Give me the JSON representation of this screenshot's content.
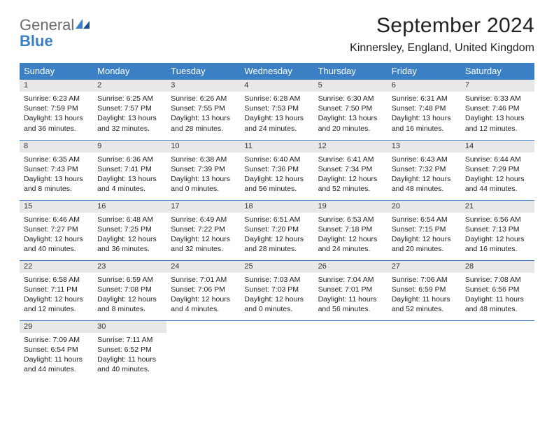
{
  "logo": {
    "general": "General",
    "blue": "Blue"
  },
  "title": "September 2024",
  "location": "Kinnersley, England, United Kingdom",
  "colors": {
    "header_bg": "#3b7fc4",
    "daynum_bg": "#e8e8e8",
    "rule": "#3b7fc4"
  },
  "day_headers": [
    "Sunday",
    "Monday",
    "Tuesday",
    "Wednesday",
    "Thursday",
    "Friday",
    "Saturday"
  ],
  "weeks": [
    [
      {
        "n": "1",
        "sr": "Sunrise: 6:23 AM",
        "ss": "Sunset: 7:59 PM",
        "d1": "Daylight: 13 hours",
        "d2": "and 36 minutes."
      },
      {
        "n": "2",
        "sr": "Sunrise: 6:25 AM",
        "ss": "Sunset: 7:57 PM",
        "d1": "Daylight: 13 hours",
        "d2": "and 32 minutes."
      },
      {
        "n": "3",
        "sr": "Sunrise: 6:26 AM",
        "ss": "Sunset: 7:55 PM",
        "d1": "Daylight: 13 hours",
        "d2": "and 28 minutes."
      },
      {
        "n": "4",
        "sr": "Sunrise: 6:28 AM",
        "ss": "Sunset: 7:53 PM",
        "d1": "Daylight: 13 hours",
        "d2": "and 24 minutes."
      },
      {
        "n": "5",
        "sr": "Sunrise: 6:30 AM",
        "ss": "Sunset: 7:50 PM",
        "d1": "Daylight: 13 hours",
        "d2": "and 20 minutes."
      },
      {
        "n": "6",
        "sr": "Sunrise: 6:31 AM",
        "ss": "Sunset: 7:48 PM",
        "d1": "Daylight: 13 hours",
        "d2": "and 16 minutes."
      },
      {
        "n": "7",
        "sr": "Sunrise: 6:33 AM",
        "ss": "Sunset: 7:46 PM",
        "d1": "Daylight: 13 hours",
        "d2": "and 12 minutes."
      }
    ],
    [
      {
        "n": "8",
        "sr": "Sunrise: 6:35 AM",
        "ss": "Sunset: 7:43 PM",
        "d1": "Daylight: 13 hours",
        "d2": "and 8 minutes."
      },
      {
        "n": "9",
        "sr": "Sunrise: 6:36 AM",
        "ss": "Sunset: 7:41 PM",
        "d1": "Daylight: 13 hours",
        "d2": "and 4 minutes."
      },
      {
        "n": "10",
        "sr": "Sunrise: 6:38 AM",
        "ss": "Sunset: 7:39 PM",
        "d1": "Daylight: 13 hours",
        "d2": "and 0 minutes."
      },
      {
        "n": "11",
        "sr": "Sunrise: 6:40 AM",
        "ss": "Sunset: 7:36 PM",
        "d1": "Daylight: 12 hours",
        "d2": "and 56 minutes."
      },
      {
        "n": "12",
        "sr": "Sunrise: 6:41 AM",
        "ss": "Sunset: 7:34 PM",
        "d1": "Daylight: 12 hours",
        "d2": "and 52 minutes."
      },
      {
        "n": "13",
        "sr": "Sunrise: 6:43 AM",
        "ss": "Sunset: 7:32 PM",
        "d1": "Daylight: 12 hours",
        "d2": "and 48 minutes."
      },
      {
        "n": "14",
        "sr": "Sunrise: 6:44 AM",
        "ss": "Sunset: 7:29 PM",
        "d1": "Daylight: 12 hours",
        "d2": "and 44 minutes."
      }
    ],
    [
      {
        "n": "15",
        "sr": "Sunrise: 6:46 AM",
        "ss": "Sunset: 7:27 PM",
        "d1": "Daylight: 12 hours",
        "d2": "and 40 minutes."
      },
      {
        "n": "16",
        "sr": "Sunrise: 6:48 AM",
        "ss": "Sunset: 7:25 PM",
        "d1": "Daylight: 12 hours",
        "d2": "and 36 minutes."
      },
      {
        "n": "17",
        "sr": "Sunrise: 6:49 AM",
        "ss": "Sunset: 7:22 PM",
        "d1": "Daylight: 12 hours",
        "d2": "and 32 minutes."
      },
      {
        "n": "18",
        "sr": "Sunrise: 6:51 AM",
        "ss": "Sunset: 7:20 PM",
        "d1": "Daylight: 12 hours",
        "d2": "and 28 minutes."
      },
      {
        "n": "19",
        "sr": "Sunrise: 6:53 AM",
        "ss": "Sunset: 7:18 PM",
        "d1": "Daylight: 12 hours",
        "d2": "and 24 minutes."
      },
      {
        "n": "20",
        "sr": "Sunrise: 6:54 AM",
        "ss": "Sunset: 7:15 PM",
        "d1": "Daylight: 12 hours",
        "d2": "and 20 minutes."
      },
      {
        "n": "21",
        "sr": "Sunrise: 6:56 AM",
        "ss": "Sunset: 7:13 PM",
        "d1": "Daylight: 12 hours",
        "d2": "and 16 minutes."
      }
    ],
    [
      {
        "n": "22",
        "sr": "Sunrise: 6:58 AM",
        "ss": "Sunset: 7:11 PM",
        "d1": "Daylight: 12 hours",
        "d2": "and 12 minutes."
      },
      {
        "n": "23",
        "sr": "Sunrise: 6:59 AM",
        "ss": "Sunset: 7:08 PM",
        "d1": "Daylight: 12 hours",
        "d2": "and 8 minutes."
      },
      {
        "n": "24",
        "sr": "Sunrise: 7:01 AM",
        "ss": "Sunset: 7:06 PM",
        "d1": "Daylight: 12 hours",
        "d2": "and 4 minutes."
      },
      {
        "n": "25",
        "sr": "Sunrise: 7:03 AM",
        "ss": "Sunset: 7:03 PM",
        "d1": "Daylight: 12 hours",
        "d2": "and 0 minutes."
      },
      {
        "n": "26",
        "sr": "Sunrise: 7:04 AM",
        "ss": "Sunset: 7:01 PM",
        "d1": "Daylight: 11 hours",
        "d2": "and 56 minutes."
      },
      {
        "n": "27",
        "sr": "Sunrise: 7:06 AM",
        "ss": "Sunset: 6:59 PM",
        "d1": "Daylight: 11 hours",
        "d2": "and 52 minutes."
      },
      {
        "n": "28",
        "sr": "Sunrise: 7:08 AM",
        "ss": "Sunset: 6:56 PM",
        "d1": "Daylight: 11 hours",
        "d2": "and 48 minutes."
      }
    ],
    [
      {
        "n": "29",
        "sr": "Sunrise: 7:09 AM",
        "ss": "Sunset: 6:54 PM",
        "d1": "Daylight: 11 hours",
        "d2": "and 44 minutes."
      },
      {
        "n": "30",
        "sr": "Sunrise: 7:11 AM",
        "ss": "Sunset: 6:52 PM",
        "d1": "Daylight: 11 hours",
        "d2": "and 40 minutes."
      },
      {
        "empty": true
      },
      {
        "empty": true
      },
      {
        "empty": true
      },
      {
        "empty": true
      },
      {
        "empty": true
      }
    ]
  ]
}
